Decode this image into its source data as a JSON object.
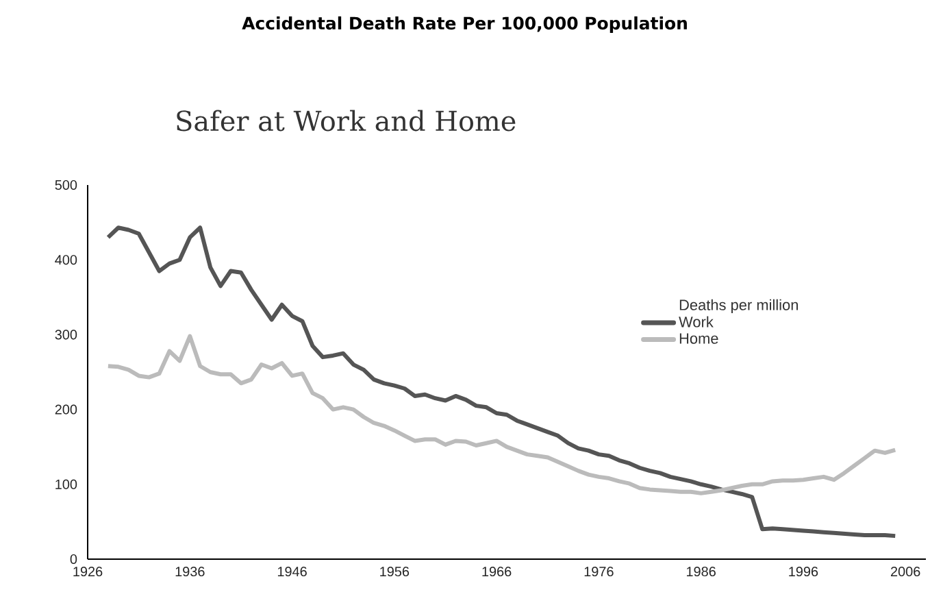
{
  "chart_data": {
    "type": "line",
    "title": "Accidental Death Rate Per 100,000 Population",
    "subtitle": "Safer at Work and Home",
    "legend_title": "Deaths per million",
    "x": [
      1928,
      1929,
      1930,
      1931,
      1932,
      1933,
      1934,
      1935,
      1936,
      1937,
      1938,
      1939,
      1940,
      1941,
      1942,
      1943,
      1944,
      1945,
      1946,
      1947,
      1948,
      1949,
      1950,
      1951,
      1952,
      1953,
      1954,
      1955,
      1956,
      1957,
      1958,
      1959,
      1960,
      1961,
      1962,
      1963,
      1964,
      1965,
      1966,
      1967,
      1968,
      1969,
      1970,
      1971,
      1972,
      1973,
      1974,
      1975,
      1976,
      1977,
      1978,
      1979,
      1980,
      1981,
      1982,
      1983,
      1984,
      1985,
      1986,
      1987,
      1988,
      1989,
      1990,
      1991,
      1992,
      1993,
      1994,
      1995,
      1996,
      1997,
      1998,
      1999,
      2000,
      2001,
      2002,
      2003,
      2004,
      2005
    ],
    "series": [
      {
        "name": "Work",
        "color": "#555555",
        "values": [
          430,
          443,
          440,
          435,
          410,
          385,
          395,
          400,
          430,
          443,
          390,
          365,
          385,
          383,
          360,
          340,
          320,
          340,
          325,
          318,
          285,
          270,
          272,
          275,
          260,
          253,
          240,
          235,
          232,
          228,
          218,
          220,
          215,
          212,
          218,
          213,
          205,
          203,
          195,
          193,
          185,
          180,
          175,
          170,
          165,
          155,
          148,
          145,
          140,
          138,
          132,
          128,
          122,
          118,
          115,
          110,
          107,
          104,
          100,
          97,
          93,
          90,
          87,
          83,
          40,
          41,
          40,
          39,
          38,
          37,
          36,
          35,
          34,
          33,
          32,
          32,
          32,
          31
        ]
      },
      {
        "name": "Home",
        "color": "#bbbbbb",
        "values": [
          258,
          257,
          253,
          245,
          243,
          248,
          278,
          265,
          298,
          258,
          250,
          247,
          247,
          235,
          240,
          260,
          255,
          262,
          245,
          248,
          222,
          215,
          200,
          203,
          200,
          190,
          182,
          178,
          172,
          165,
          158,
          160,
          160,
          153,
          158,
          157,
          152,
          155,
          158,
          150,
          145,
          140,
          138,
          136,
          130,
          124,
          118,
          113,
          110,
          108,
          104,
          101,
          95,
          93,
          92,
          91,
          90,
          90,
          88,
          90,
          92,
          95,
          98,
          100,
          100,
          104,
          105,
          105,
          106,
          108,
          110,
          106,
          115,
          125,
          135,
          145,
          142,
          146
        ]
      }
    ],
    "xlim": [
      1926,
      2008
    ],
    "ylim": [
      0,
      500
    ],
    "xticks": [
      1926,
      1936,
      1946,
      1956,
      1966,
      1976,
      1986,
      1996,
      2006
    ],
    "yticks": [
      0,
      100,
      200,
      300,
      400,
      500
    ],
    "grid": false,
    "legend": "right",
    "marker": "none",
    "line_style": "solid"
  }
}
